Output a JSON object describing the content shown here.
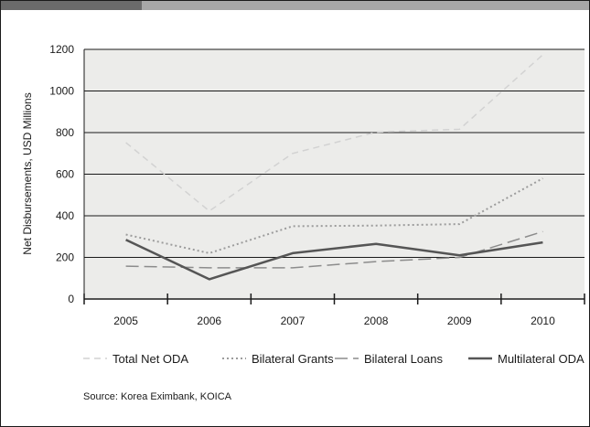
{
  "chart_data": {
    "type": "line",
    "categories": [
      "2005",
      "2006",
      "2007",
      "2008",
      "2009",
      "2010"
    ],
    "x": [
      2005,
      2006,
      2007,
      2008,
      2009,
      2010
    ],
    "ylabel": "Net Disbursements, USD Millions",
    "xlabel": "",
    "ylim": [
      0,
      1200
    ],
    "yticks": [
      0,
      200,
      400,
      600,
      800,
      1000,
      1200
    ],
    "grid": "horizontal",
    "legend_position": "bottom",
    "series": [
      {
        "name": "Total Net ODA",
        "values": [
          752,
          423,
          700,
          802,
          816,
          1174
        ],
        "color": "#d2d2d2",
        "dash": "7 5",
        "width": 1.5
      },
      {
        "name": "Bilateral Grants",
        "values": [
          310,
          220,
          350,
          353,
          360,
          580
        ],
        "color": "#9c9c9c",
        "dash": "2 3",
        "width": 2
      },
      {
        "name": "Bilateral Loans",
        "values": [
          158,
          150,
          150,
          180,
          200,
          324
        ],
        "color": "#8c8c8c",
        "dash": "14 6",
        "width": 1.5
      },
      {
        "name": "Multilateral ODA",
        "values": [
          285,
          95,
          220,
          265,
          210,
          272
        ],
        "color": "#555555",
        "dash": "",
        "width": 2.5
      }
    ]
  },
  "source": "Source: Korea Eximbank, KOICA"
}
